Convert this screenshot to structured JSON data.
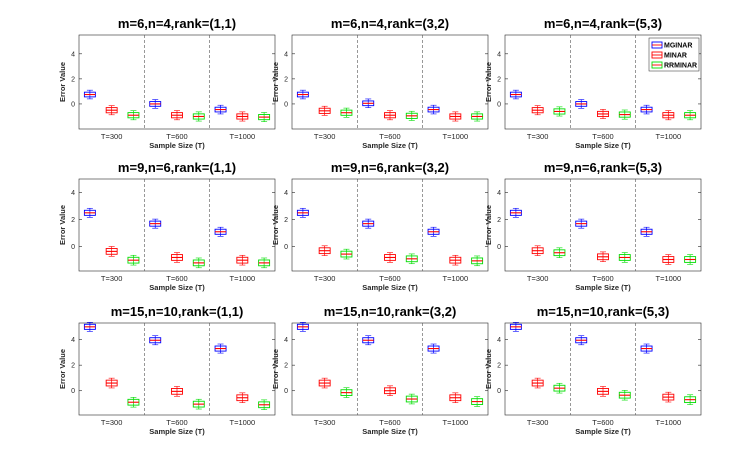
{
  "chart_data": {
    "type": "box",
    "xlabel": "Sample Size (T)",
    "ylabel": "Error Value",
    "groups": [
      "T=300",
      "T=600",
      "T=1000"
    ],
    "legend": {
      "position": "top-right",
      "entries": [
        {
          "name": "MGINAR",
          "color": "#0000ff"
        },
        {
          "name": "MINAR",
          "color": "#ff0000"
        },
        {
          "name": "RRMINAR",
          "color": "#00dd00"
        }
      ]
    },
    "panels": [
      {
        "title": "m=6,n=4,rank=(1,1)",
        "ylim": [
          -2,
          5.5
        ],
        "yticks": [
          0,
          2,
          4
        ],
        "series": [
          {
            "name": "MGINAR",
            "values": [
              0.75,
              0.0,
              -0.45
            ]
          },
          {
            "name": "MINAR",
            "values": [
              -0.5,
              -0.9,
              -1.0
            ]
          },
          {
            "name": "RRMINAR",
            "values": [
              -0.9,
              -1.0,
              -1.05
            ]
          }
        ]
      },
      {
        "title": "m=6,n=4,rank=(3,2)",
        "ylim": [
          -2,
          5.5
        ],
        "yticks": [
          0,
          2,
          4
        ],
        "series": [
          {
            "name": "MGINAR",
            "values": [
              0.75,
              0.05,
              -0.45
            ]
          },
          {
            "name": "MINAR",
            "values": [
              -0.55,
              -0.9,
              -1.0
            ]
          },
          {
            "name": "RRMINAR",
            "values": [
              -0.7,
              -0.95,
              -1.0
            ]
          }
        ]
      },
      {
        "title": "m=6,n=4,rank=(5,3)",
        "ylim": [
          -2,
          5.5
        ],
        "yticks": [
          0,
          2,
          4
        ],
        "series": [
          {
            "name": "MGINAR",
            "values": [
              0.75,
              0.0,
              -0.45
            ]
          },
          {
            "name": "MINAR",
            "values": [
              -0.5,
              -0.8,
              -0.9
            ]
          },
          {
            "name": "RRMINAR",
            "values": [
              -0.6,
              -0.85,
              -0.9
            ]
          }
        ]
      },
      {
        "title": "m=9,n=6,rank=(1,1)",
        "ylim": [
          -1.8,
          5
        ],
        "yticks": [
          0,
          2,
          4
        ],
        "series": [
          {
            "name": "MGINAR",
            "values": [
              2.5,
              1.7,
              1.1
            ]
          },
          {
            "name": "MINAR",
            "values": [
              -0.35,
              -0.8,
              -1.0
            ]
          },
          {
            "name": "RRMINAR",
            "values": [
              -1.0,
              -1.2,
              -1.2
            ]
          }
        ]
      },
      {
        "title": "m=9,n=6,rank=(3,2)",
        "ylim": [
          -1.8,
          5
        ],
        "yticks": [
          0,
          2,
          4
        ],
        "series": [
          {
            "name": "MGINAR",
            "values": [
              2.5,
              1.7,
              1.1
            ]
          },
          {
            "name": "MINAR",
            "values": [
              -0.3,
              -0.8,
              -1.0
            ]
          },
          {
            "name": "RRMINAR",
            "values": [
              -0.55,
              -0.9,
              -1.05
            ]
          }
        ]
      },
      {
        "title": "m=9,n=6,rank=(5,3)",
        "ylim": [
          -1.8,
          5
        ],
        "yticks": [
          0,
          2,
          4
        ],
        "series": [
          {
            "name": "MGINAR",
            "values": [
              2.5,
              1.7,
              1.1
            ]
          },
          {
            "name": "MINAR",
            "values": [
              -0.3,
              -0.75,
              -0.95
            ]
          },
          {
            "name": "RRMINAR",
            "values": [
              -0.45,
              -0.8,
              -0.95
            ]
          }
        ]
      },
      {
        "title": "m=15,n=10,rank=(1,1)",
        "ylim": [
          -1.9,
          5.3
        ],
        "yticks": [
          0,
          2,
          4
        ],
        "series": [
          {
            "name": "MGINAR",
            "values": [
              5.0,
              3.95,
              3.3
            ]
          },
          {
            "name": "MINAR",
            "values": [
              0.6,
              -0.05,
              -0.55
            ]
          },
          {
            "name": "RRMINAR",
            "values": [
              -0.9,
              -1.05,
              -1.1
            ]
          }
        ]
      },
      {
        "title": "m=15,n=10,rank=(3,2)",
        "ylim": [
          -1.9,
          5.3
        ],
        "yticks": [
          0,
          2,
          4
        ],
        "series": [
          {
            "name": "MGINAR",
            "values": [
              5.0,
              3.95,
              3.3
            ]
          },
          {
            "name": "MINAR",
            "values": [
              0.6,
              0.0,
              -0.55
            ]
          },
          {
            "name": "RRMINAR",
            "values": [
              -0.15,
              -0.65,
              -0.85
            ]
          }
        ]
      },
      {
        "title": "m=15,n=10,rank=(5,3)",
        "ylim": [
          -1.9,
          5.3
        ],
        "yticks": [
          0,
          2,
          4
        ],
        "series": [
          {
            "name": "MGINAR",
            "values": [
              5.0,
              3.95,
              3.3
            ]
          },
          {
            "name": "MINAR",
            "values": [
              0.6,
              -0.05,
              -0.5
            ]
          },
          {
            "name": "RRMINAR",
            "values": [
              0.2,
              -0.35,
              -0.7
            ]
          }
        ]
      }
    ]
  }
}
